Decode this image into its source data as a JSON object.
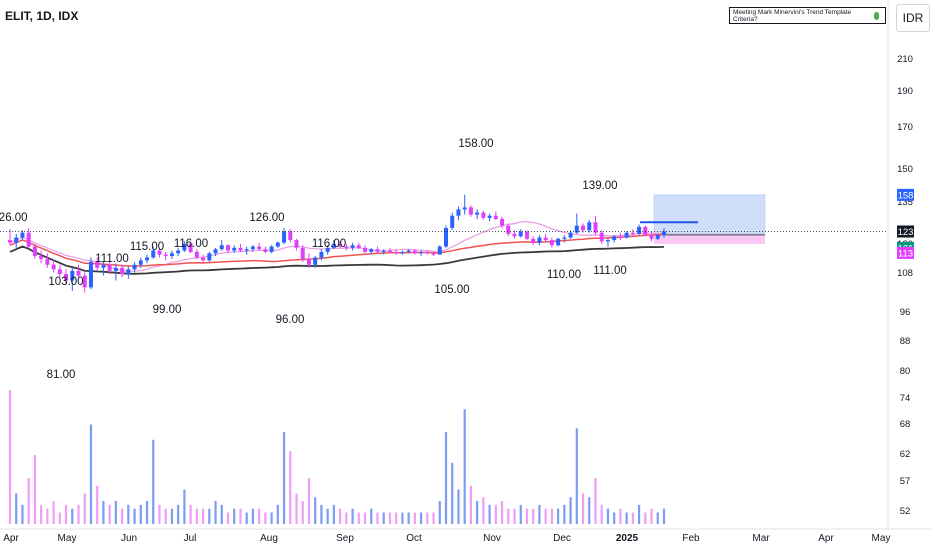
{
  "header": {
    "symbol": "ELIT, 1D, IDX",
    "currency": "IDR"
  },
  "indicator": {
    "label": "Meeting Mark Minervini's Trend Template Criteria?",
    "status_color": "#4caf50"
  },
  "colors": {
    "up": "#2962ff",
    "down": "#e040fb",
    "ma_short": "#e79ce8",
    "ma_mid": "#ef5350",
    "ma_long": "#3a3a3a",
    "target_zone": "#cfdefb",
    "stop_zone": "#fbc8f5"
  },
  "chart_data": {
    "type": "candlestick",
    "y_axis": {
      "scale": "log",
      "range": [
        48,
        240
      ],
      "ticks": [
        "210",
        "190",
        "170",
        "150",
        "135",
        "120",
        "108",
        "96",
        "88",
        "80",
        "74",
        "68",
        "62",
        "57",
        "52"
      ]
    },
    "x_axis_labels": [
      "Apr",
      "May",
      "Jun",
      "Jul",
      "Aug",
      "Sep",
      "Oct",
      "Nov",
      "Dec",
      "2025",
      "Feb",
      "Mar",
      "Apr",
      "May"
    ],
    "price_badges": [
      {
        "value": "158",
        "color": "#2962ff",
        "text_color": "#ffffff"
      },
      {
        "value": "123",
        "color": "#131722",
        "text_color": "#ffffff"
      },
      {
        "value": "121",
        "color": "#089981",
        "text_color": "#ffffff"
      },
      {
        "value": "113",
        "color": "#e040fb",
        "text_color": "#ffffff"
      }
    ],
    "swing_labels": [
      "126.00",
      "103.00",
      "81.00",
      "111.00",
      "115.00",
      "99.00",
      "116.00",
      "126.00",
      "96.00",
      "116.00",
      "105.00",
      "158.00",
      "139.00",
      "110.00",
      "111.00"
    ],
    "last_price": 123,
    "position": {
      "target": 158,
      "entry": 121,
      "stop": 113,
      "entry_line": 131
    },
    "series": [
      {
        "o": 116,
        "h": 125,
        "l": 112,
        "c": 114
      },
      {
        "o": 114,
        "h": 121,
        "l": 110,
        "c": 118
      },
      {
        "o": 118,
        "h": 124,
        "l": 116,
        "c": 122
      },
      {
        "o": 122,
        "h": 126,
        "l": 110,
        "c": 111
      },
      {
        "o": 111,
        "h": 113,
        "l": 102,
        "c": 104
      },
      {
        "o": 104,
        "h": 108,
        "l": 99,
        "c": 102
      },
      {
        "o": 102,
        "h": 106,
        "l": 96,
        "c": 98
      },
      {
        "o": 98,
        "h": 101,
        "l": 93,
        "c": 95
      },
      {
        "o": 95,
        "h": 98,
        "l": 90,
        "c": 92
      },
      {
        "o": 92,
        "h": 95,
        "l": 86,
        "c": 88
      },
      {
        "o": 88,
        "h": 96,
        "l": 82,
        "c": 94
      },
      {
        "o": 94,
        "h": 98,
        "l": 90,
        "c": 91
      },
      {
        "o": 91,
        "h": 93,
        "l": 81,
        "c": 84
      },
      {
        "o": 84,
        "h": 103,
        "l": 83,
        "c": 100
      },
      {
        "o": 100,
        "h": 103,
        "l": 94,
        "c": 96
      },
      {
        "o": 96,
        "h": 100,
        "l": 91,
        "c": 98
      },
      {
        "o": 98,
        "h": 101,
        "l": 92,
        "c": 94
      },
      {
        "o": 94,
        "h": 99,
        "l": 88,
        "c": 96
      },
      {
        "o": 96,
        "h": 98,
        "l": 90,
        "c": 92
      },
      {
        "o": 92,
        "h": 97,
        "l": 89,
        "c": 95
      },
      {
        "o": 95,
        "h": 100,
        "l": 93,
        "c": 98
      },
      {
        "o": 98,
        "h": 103,
        "l": 96,
        "c": 101
      },
      {
        "o": 101,
        "h": 105,
        "l": 99,
        "c": 103
      },
      {
        "o": 103,
        "h": 111,
        "l": 102,
        "c": 108
      },
      {
        "o": 108,
        "h": 110,
        "l": 103,
        "c": 105
      },
      {
        "o": 105,
        "h": 107,
        "l": 101,
        "c": 104
      },
      {
        "o": 104,
        "h": 108,
        "l": 102,
        "c": 106
      },
      {
        "o": 106,
        "h": 110,
        "l": 104,
        "c": 108
      },
      {
        "o": 108,
        "h": 115,
        "l": 107,
        "c": 113
      },
      {
        "o": 113,
        "h": 114,
        "l": 106,
        "c": 107
      },
      {
        "o": 107,
        "h": 109,
        "l": 102,
        "c": 103
      },
      {
        "o": 103,
        "h": 105,
        "l": 99,
        "c": 101
      },
      {
        "o": 101,
        "h": 107,
        "l": 100,
        "c": 106
      },
      {
        "o": 106,
        "h": 110,
        "l": 104,
        "c": 109
      },
      {
        "o": 109,
        "h": 116,
        "l": 108,
        "c": 112
      },
      {
        "o": 112,
        "h": 113,
        "l": 106,
        "c": 108
      },
      {
        "o": 108,
        "h": 112,
        "l": 106,
        "c": 110
      },
      {
        "o": 110,
        "h": 113,
        "l": 107,
        "c": 108
      },
      {
        "o": 108,
        "h": 111,
        "l": 105,
        "c": 109
      },
      {
        "o": 109,
        "h": 112,
        "l": 107,
        "c": 111
      },
      {
        "o": 111,
        "h": 114,
        "l": 108,
        "c": 109
      },
      {
        "o": 109,
        "h": 111,
        "l": 106,
        "c": 107
      },
      {
        "o": 107,
        "h": 112,
        "l": 106,
        "c": 111
      },
      {
        "o": 111,
        "h": 115,
        "l": 110,
        "c": 114
      },
      {
        "o": 114,
        "h": 126,
        "l": 113,
        "c": 123
      },
      {
        "o": 123,
        "h": 125,
        "l": 114,
        "c": 116
      },
      {
        "o": 116,
        "h": 117,
        "l": 108,
        "c": 110
      },
      {
        "o": 110,
        "h": 112,
        "l": 100,
        "c": 102
      },
      {
        "o": 102,
        "h": 106,
        "l": 96,
        "c": 98
      },
      {
        "o": 98,
        "h": 104,
        "l": 96,
        "c": 103
      },
      {
        "o": 103,
        "h": 109,
        "l": 101,
        "c": 107
      },
      {
        "o": 107,
        "h": 112,
        "l": 105,
        "c": 110
      },
      {
        "o": 110,
        "h": 116,
        "l": 109,
        "c": 113
      },
      {
        "o": 113,
        "h": 115,
        "l": 110,
        "c": 111
      },
      {
        "o": 111,
        "h": 113,
        "l": 108,
        "c": 110
      },
      {
        "o": 110,
        "h": 114,
        "l": 108,
        "c": 112
      },
      {
        "o": 112,
        "h": 114,
        "l": 109,
        "c": 110
      },
      {
        "o": 110,
        "h": 112,
        "l": 106,
        "c": 107
      },
      {
        "o": 107,
        "h": 110,
        "l": 105,
        "c": 109
      },
      {
        "o": 109,
        "h": 111,
        "l": 106,
        "c": 107
      },
      {
        "o": 107,
        "h": 109,
        "l": 105,
        "c": 108
      },
      {
        "o": 108,
        "h": 110,
        "l": 106,
        "c": 107
      },
      {
        "o": 107,
        "h": 109,
        "l": 105,
        "c": 106
      },
      {
        "o": 106,
        "h": 108,
        "l": 105,
        "c": 107
      },
      {
        "o": 107,
        "h": 109,
        "l": 106,
        "c": 108
      },
      {
        "o": 108,
        "h": 109,
        "l": 105,
        "c": 106
      },
      {
        "o": 106,
        "h": 108,
        "l": 104,
        "c": 107
      },
      {
        "o": 107,
        "h": 108,
        "l": 105,
        "c": 106
      },
      {
        "o": 106,
        "h": 107,
        "l": 104,
        "c": 105
      },
      {
        "o": 105,
        "h": 112,
        "l": 105,
        "c": 111
      },
      {
        "o": 111,
        "h": 128,
        "l": 110,
        "c": 126
      },
      {
        "o": 126,
        "h": 140,
        "l": 124,
        "c": 137
      },
      {
        "o": 137,
        "h": 146,
        "l": 133,
        "c": 143
      },
      {
        "o": 143,
        "h": 158,
        "l": 138,
        "c": 145
      },
      {
        "o": 145,
        "h": 147,
        "l": 136,
        "c": 138
      },
      {
        "o": 138,
        "h": 143,
        "l": 134,
        "c": 140
      },
      {
        "o": 140,
        "h": 142,
        "l": 133,
        "c": 135
      },
      {
        "o": 135,
        "h": 139,
        "l": 132,
        "c": 137
      },
      {
        "o": 137,
        "h": 141,
        "l": 133,
        "c": 134
      },
      {
        "o": 134,
        "h": 136,
        "l": 126,
        "c": 128
      },
      {
        "o": 128,
        "h": 130,
        "l": 119,
        "c": 121
      },
      {
        "o": 121,
        "h": 124,
        "l": 117,
        "c": 119
      },
      {
        "o": 119,
        "h": 125,
        "l": 118,
        "c": 123
      },
      {
        "o": 123,
        "h": 124,
        "l": 116,
        "c": 117
      },
      {
        "o": 117,
        "h": 119,
        "l": 112,
        "c": 114
      },
      {
        "o": 114,
        "h": 120,
        "l": 112,
        "c": 118
      },
      {
        "o": 118,
        "h": 121,
        "l": 115,
        "c": 116
      },
      {
        "o": 116,
        "h": 118,
        "l": 110,
        "c": 112
      },
      {
        "o": 112,
        "h": 118,
        "l": 111,
        "c": 117
      },
      {
        "o": 117,
        "h": 120,
        "l": 114,
        "c": 118
      },
      {
        "o": 118,
        "h": 124,
        "l": 117,
        "c": 122
      },
      {
        "o": 122,
        "h": 139,
        "l": 121,
        "c": 128
      },
      {
        "o": 128,
        "h": 130,
        "l": 122,
        "c": 124
      },
      {
        "o": 124,
        "h": 133,
        "l": 122,
        "c": 131
      },
      {
        "o": 131,
        "h": 137,
        "l": 120,
        "c": 122
      },
      {
        "o": 122,
        "h": 124,
        "l": 113,
        "c": 115
      },
      {
        "o": 115,
        "h": 118,
        "l": 111,
        "c": 116
      },
      {
        "o": 116,
        "h": 120,
        "l": 114,
        "c": 119
      },
      {
        "o": 119,
        "h": 122,
        "l": 116,
        "c": 118
      },
      {
        "o": 118,
        "h": 123,
        "l": 117,
        "c": 122
      },
      {
        "o": 122,
        "h": 125,
        "l": 119,
        "c": 121
      },
      {
        "o": 121,
        "h": 129,
        "l": 120,
        "c": 127
      },
      {
        "o": 127,
        "h": 128,
        "l": 119,
        "c": 120
      },
      {
        "o": 120,
        "h": 123,
        "l": 115,
        "c": 117
      },
      {
        "o": 117,
        "h": 121,
        "l": 116,
        "c": 120
      },
      {
        "o": 120,
        "h": 126,
        "l": 118,
        "c": 123
      }
    ],
    "volume": [
      0.35,
      0.08,
      0.05,
      0.12,
      0.18,
      0.05,
      0.04,
      0.06,
      0.03,
      0.05,
      0.04,
      0.05,
      0.08,
      0.26,
      0.1,
      0.06,
      0.05,
      0.06,
      0.04,
      0.05,
      0.04,
      0.05,
      0.06,
      0.22,
      0.05,
      0.04,
      0.04,
      0.05,
      0.09,
      0.05,
      0.04,
      0.04,
      0.04,
      0.06,
      0.05,
      0.03,
      0.04,
      0.04,
      0.03,
      0.04,
      0.04,
      0.03,
      0.03,
      0.05,
      0.24,
      0.19,
      0.08,
      0.06,
      0.12,
      0.07,
      0.05,
      0.04,
      0.05,
      0.04,
      0.03,
      0.04,
      0.03,
      0.03,
      0.04,
      0.03,
      0.03,
      0.03,
      0.03,
      0.03,
      0.03,
      0.03,
      0.03,
      0.03,
      0.03,
      0.06,
      0.24,
      0.16,
      0.09,
      0.3,
      0.1,
      0.06,
      0.07,
      0.05,
      0.05,
      0.06,
      0.04,
      0.04,
      0.05,
      0.04,
      0.04,
      0.05,
      0.04,
      0.04,
      0.04,
      0.05,
      0.07,
      0.25,
      0.08,
      0.07,
      0.12,
      0.05,
      0.04,
      0.03,
      0.04,
      0.03,
      0.03,
      0.05,
      0.03,
      0.04,
      0.03,
      0.04
    ]
  }
}
